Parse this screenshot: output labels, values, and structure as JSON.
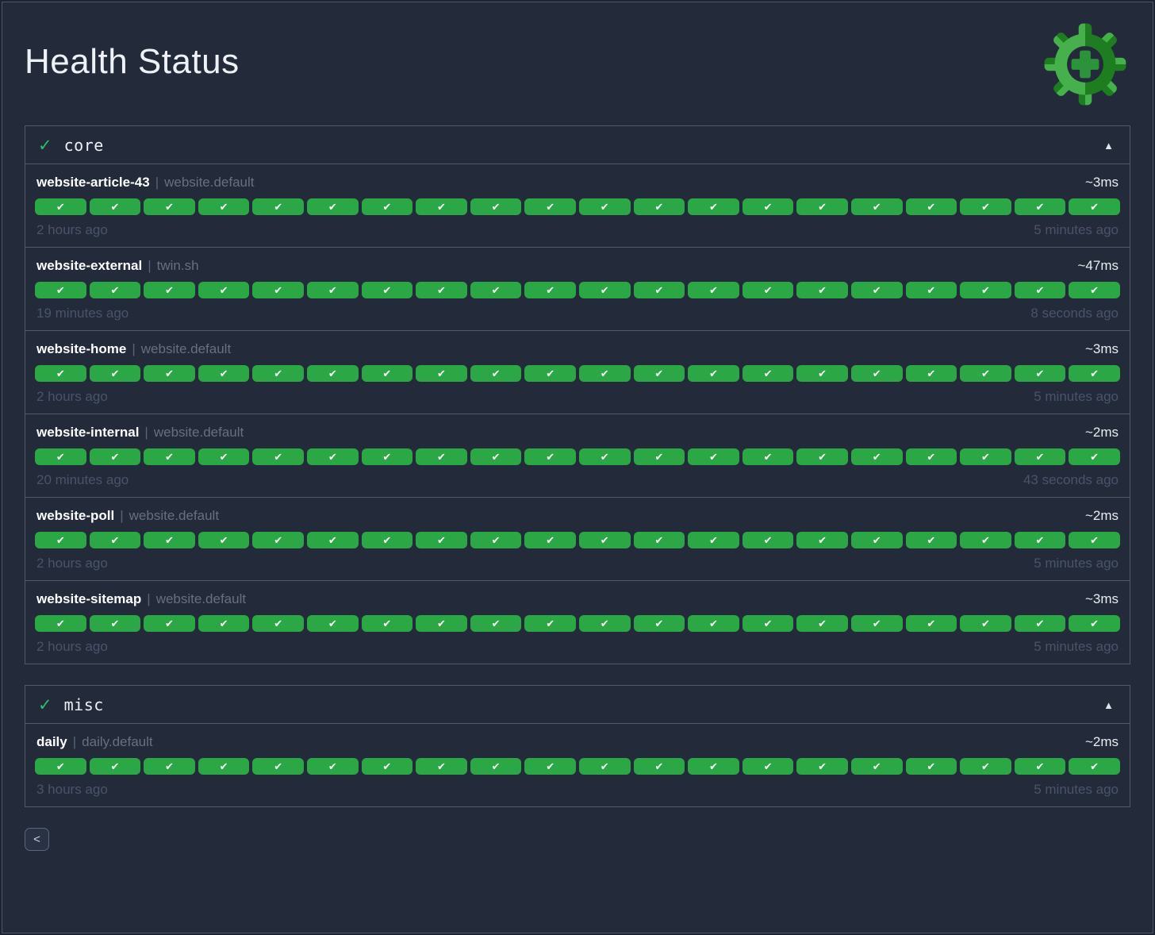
{
  "title": "Health Status",
  "icons": {
    "check_light": "✓",
    "check_heavy": "✔",
    "collapse": "▲",
    "back": "<",
    "separator": "|"
  },
  "colors": {
    "background": "#232b3a",
    "panel_border": "#4e5a6c",
    "pill_green": "#2ca745",
    "status_check_green": "#2dbd6e",
    "logo_light_green": "#46b14c",
    "logo_dark_green": "#1e7d20",
    "logo_plus_green": "#2b9339"
  },
  "groups": [
    {
      "label": "core",
      "checks": [
        {
          "name": "website-article-43",
          "namespace": "website.default",
          "latency": "~3ms",
          "oldest": "2 hours ago",
          "newest": "5 minutes ago",
          "history": [
            "pass",
            "pass",
            "pass",
            "pass",
            "pass",
            "pass",
            "pass",
            "pass",
            "pass",
            "pass",
            "pass",
            "pass",
            "pass",
            "pass",
            "pass",
            "pass",
            "pass",
            "pass",
            "pass",
            "pass"
          ]
        },
        {
          "name": "website-external",
          "namespace": "twin.sh",
          "latency": "~47ms",
          "oldest": "19 minutes ago",
          "newest": "8 seconds ago",
          "history": [
            "pass",
            "pass",
            "pass",
            "pass",
            "pass",
            "pass",
            "pass",
            "pass",
            "pass",
            "pass",
            "pass",
            "pass",
            "pass",
            "pass",
            "pass",
            "pass",
            "pass",
            "pass",
            "pass",
            "pass"
          ]
        },
        {
          "name": "website-home",
          "namespace": "website.default",
          "latency": "~3ms",
          "oldest": "2 hours ago",
          "newest": "5 minutes ago",
          "history": [
            "pass",
            "pass",
            "pass",
            "pass",
            "pass",
            "pass",
            "pass",
            "pass",
            "pass",
            "pass",
            "pass",
            "pass",
            "pass",
            "pass",
            "pass",
            "pass",
            "pass",
            "pass",
            "pass",
            "pass"
          ]
        },
        {
          "name": "website-internal",
          "namespace": "website.default",
          "latency": "~2ms",
          "oldest": "20 minutes ago",
          "newest": "43 seconds ago",
          "history": [
            "pass",
            "pass",
            "pass",
            "pass",
            "pass",
            "pass",
            "pass",
            "pass",
            "pass",
            "pass",
            "pass",
            "pass",
            "pass",
            "pass",
            "pass",
            "pass",
            "pass",
            "pass",
            "pass",
            "pass"
          ]
        },
        {
          "name": "website-poll",
          "namespace": "website.default",
          "latency": "~2ms",
          "oldest": "2 hours ago",
          "newest": "5 minutes ago",
          "history": [
            "pass",
            "pass",
            "pass",
            "pass",
            "pass",
            "pass",
            "pass",
            "pass",
            "pass",
            "pass",
            "pass",
            "pass",
            "pass",
            "pass",
            "pass",
            "pass",
            "pass",
            "pass",
            "pass",
            "pass"
          ]
        },
        {
          "name": "website-sitemap",
          "namespace": "website.default",
          "latency": "~3ms",
          "oldest": "2 hours ago",
          "newest": "5 minutes ago",
          "history": [
            "pass",
            "pass",
            "pass",
            "pass",
            "pass",
            "pass",
            "pass",
            "pass",
            "pass",
            "pass",
            "pass",
            "pass",
            "pass",
            "pass",
            "pass",
            "pass",
            "pass",
            "pass",
            "pass",
            "pass"
          ]
        }
      ]
    },
    {
      "label": "misc",
      "checks": [
        {
          "name": "daily",
          "namespace": "daily.default",
          "latency": "~2ms",
          "oldest": "3 hours ago",
          "newest": "5 minutes ago",
          "history": [
            "pass",
            "pass",
            "pass",
            "pass",
            "pass",
            "pass",
            "pass",
            "pass",
            "pass",
            "pass",
            "pass",
            "pass",
            "pass",
            "pass",
            "pass",
            "pass",
            "pass",
            "pass",
            "pass",
            "pass"
          ]
        }
      ]
    }
  ]
}
